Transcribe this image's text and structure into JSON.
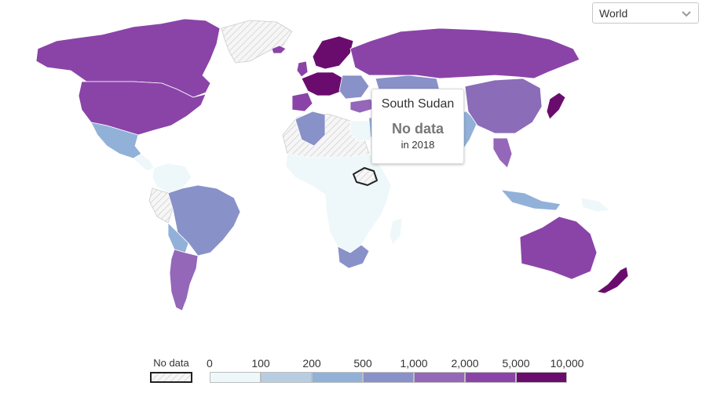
{
  "region_selector": {
    "value": "World",
    "icon": "chevron-down-icon"
  },
  "tooltip": {
    "country": "South Sudan",
    "value": "No data",
    "year": "in 2018"
  },
  "legend": {
    "no_data_label": "No data",
    "ticks": [
      "0",
      "100",
      "200",
      "500",
      "1,000",
      "2,000",
      "5,000",
      "10,000"
    ],
    "colors": [
      "#eef7f9",
      "#b7cde2",
      "#92b1d8",
      "#8891c8",
      "#9467b8",
      "#8a44a8",
      "#6a0c6e"
    ],
    "no_data_color": "#d9d9d9",
    "highlight_color": "#222222"
  }
}
